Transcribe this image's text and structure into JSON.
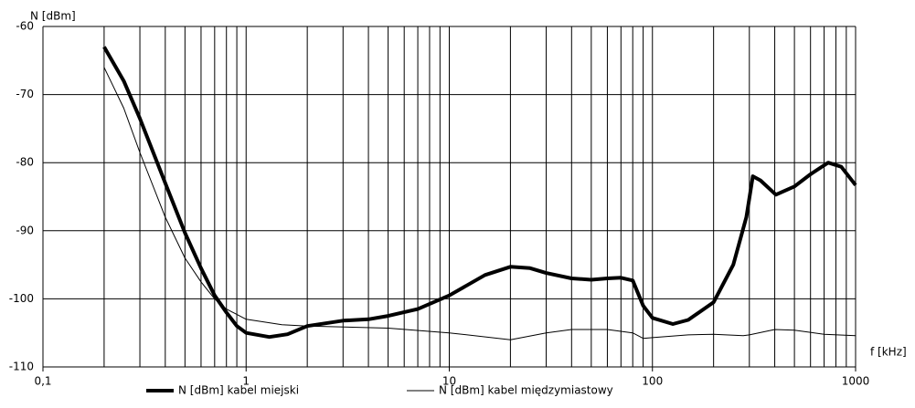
{
  "chart_data": {
    "type": "line",
    "x_scale": "log",
    "ylabel": "N [dBm]",
    "xlabel": "f [kHz]",
    "xlim": [
      0.1,
      1000
    ],
    "ylim": [
      -110,
      -60
    ],
    "xticks": [
      {
        "value": 0.1,
        "label": "0,1"
      },
      1,
      10,
      100,
      1000
    ],
    "yticks": [
      -60,
      -70,
      -80,
      -90,
      -100,
      -110
    ],
    "xgrid": [
      0.2,
      0.3,
      0.4,
      0.5,
      0.6,
      0.7,
      0.8,
      0.9,
      1,
      2,
      3,
      4,
      5,
      6,
      7,
      8,
      9,
      10,
      20,
      30,
      40,
      50,
      60,
      70,
      80,
      90,
      100,
      200,
      300,
      400,
      500,
      600,
      700,
      800,
      900,
      1000
    ],
    "grid": true,
    "series": [
      {
        "name": "N [dBm] kabel miejski",
        "color": "#000000",
        "width": 4,
        "x": [
          0.2,
          0.25,
          0.3,
          0.4,
          0.5,
          0.6,
          0.7,
          0.8,
          0.9,
          1,
          1.3,
          1.6,
          2,
          3,
          4,
          5,
          7,
          10,
          15,
          20,
          25,
          30,
          40,
          50,
          60,
          70,
          80,
          90,
          100,
          126,
          150,
          200,
          250,
          290,
          312,
          340,
          405,
          500,
          600,
          733,
          850,
          1000
        ],
        "values": [
          -63,
          -68,
          -73.5,
          -83,
          -90.3,
          -95.5,
          -99.5,
          -102,
          -104,
          -105,
          -105.6,
          -105.2,
          -104,
          -103.2,
          -103,
          -102.5,
          -101.5,
          -99.5,
          -96.5,
          -95.3,
          -95.5,
          -96.2,
          -97,
          -97.2,
          -97,
          -96.9,
          -97.3,
          -101,
          -102.8,
          -103.7,
          -103.1,
          -100.5,
          -95,
          -88,
          -82,
          -82.6,
          -84.7,
          -83.5,
          -81.7,
          -80,
          -80.6,
          -83.3
        ]
      },
      {
        "name": "N [dBm] kabel międzymiastowy",
        "color": "#000000",
        "width": 1,
        "x": [
          0.2,
          0.25,
          0.3,
          0.4,
          0.5,
          0.6,
          0.7,
          0.8,
          1,
          1.5,
          2,
          5,
          10,
          20,
          30,
          40,
          60,
          80,
          90,
          100,
          150,
          200,
          280,
          300,
          400,
          500,
          700,
          1000
        ],
        "values": [
          -66,
          -72,
          -78.5,
          -88,
          -94,
          -97.5,
          -100,
          -101.5,
          -103,
          -103.8,
          -104,
          -104.3,
          -105,
          -106,
          -105,
          -104.5,
          -104.5,
          -105,
          -105.8,
          -105.7,
          -105.3,
          -105.2,
          -105.4,
          -105.3,
          -104.5,
          -104.6,
          -105.2,
          -105.4
        ]
      }
    ]
  }
}
